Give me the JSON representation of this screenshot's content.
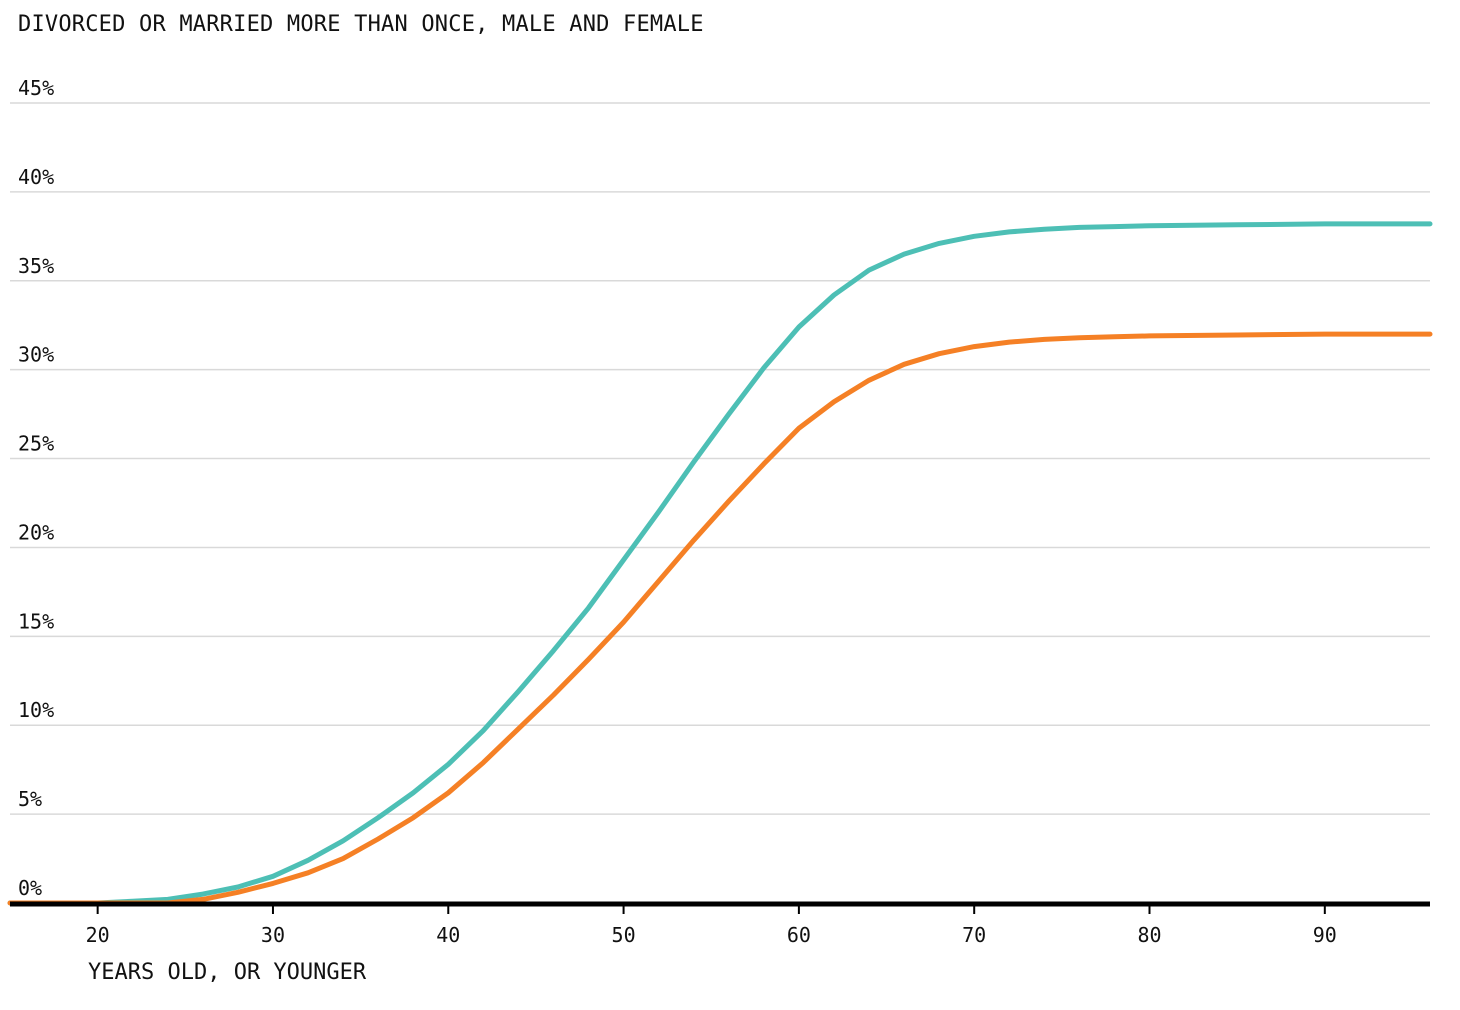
{
  "chart_data": {
    "type": "line",
    "title": "DIVORCED OR MARRIED MORE THAN ONCE, MALE AND FEMALE",
    "xlabel": "YEARS OLD, OR YOUNGER",
    "ylabel": "",
    "xlim": [
      15,
      96
    ],
    "ylim": [
      0,
      45
    ],
    "x_ticks": [
      20,
      30,
      40,
      50,
      60,
      70,
      80,
      90
    ],
    "y_ticks": [
      0,
      5,
      10,
      15,
      20,
      25,
      30,
      35,
      40,
      45
    ],
    "y_tick_labels": [
      "0%",
      "5%",
      "10%",
      "15%",
      "20%",
      "25%",
      "30%",
      "35%",
      "40%",
      "45%"
    ],
    "grid": true,
    "legend": "none",
    "series": [
      {
        "color": "#4dbfb5",
        "x": [
          15,
          20,
          22,
          24,
          26,
          28,
          30,
          32,
          34,
          36,
          38,
          40,
          42,
          44,
          46,
          48,
          50,
          52,
          54,
          56,
          58,
          60,
          62,
          64,
          66,
          68,
          70,
          72,
          74,
          76,
          78,
          80,
          85,
          90,
          96
        ],
        "y": [
          0,
          0,
          0.1,
          0.2,
          0.5,
          0.9,
          1.5,
          2.4,
          3.5,
          4.8,
          6.2,
          7.8,
          9.7,
          11.9,
          14.2,
          16.6,
          19.3,
          22,
          24.8,
          27.5,
          30.1,
          32.4,
          34.2,
          35.6,
          36.5,
          37.1,
          37.5,
          37.75,
          37.9,
          38,
          38.05,
          38.1,
          38.15,
          38.2,
          38.2
        ]
      },
      {
        "color": "#f58025",
        "x": [
          15,
          20,
          22,
          24,
          26,
          28,
          30,
          32,
          34,
          36,
          38,
          40,
          42,
          44,
          46,
          48,
          50,
          52,
          54,
          56,
          58,
          60,
          62,
          64,
          66,
          68,
          70,
          72,
          74,
          76,
          78,
          80,
          85,
          90,
          96
        ],
        "y": [
          0,
          0,
          0,
          0,
          0.2,
          0.6,
          1.1,
          1.7,
          2.5,
          3.6,
          4.8,
          6.2,
          7.9,
          9.8,
          11.7,
          13.7,
          15.8,
          18.1,
          20.4,
          22.6,
          24.7,
          26.7,
          28.2,
          29.4,
          30.3,
          30.9,
          31.3,
          31.55,
          31.7,
          31.8,
          31.85,
          31.9,
          31.95,
          32,
          32
        ]
      }
    ]
  }
}
